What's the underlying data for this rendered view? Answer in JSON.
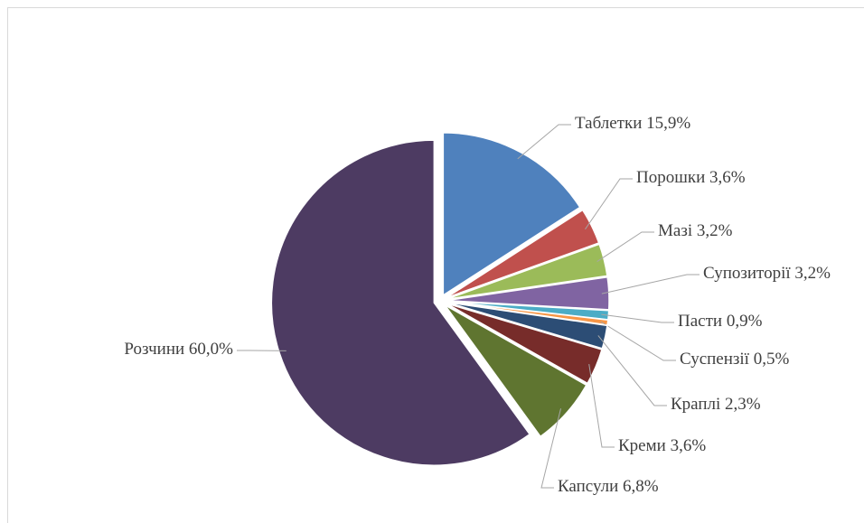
{
  "chart_data": {
    "type": "pie",
    "categories": [
      "Таблетки",
      "Порошки",
      "Мазі",
      "Супозиторії",
      "Пасти",
      "Суспензії",
      "Краплі",
      "Креми",
      "Капсули",
      "Розчини"
    ],
    "values": [
      15.9,
      3.6,
      3.2,
      3.2,
      0.9,
      0.5,
      2.3,
      3.6,
      6.8,
      60.0
    ],
    "value_labels": [
      "15,9%",
      "3,6%",
      "3,2%",
      "3,2%",
      "0,9%",
      "0,5%",
      "2,3%",
      "3,6%",
      "6,8%",
      "60,0%"
    ],
    "colors": [
      "#4f81bd",
      "#c0504d",
      "#9bbb59",
      "#8064a2",
      "#4bacc6",
      "#f79646",
      "#2c4d75",
      "#772c2a",
      "#5f7530",
      "#4d3b62"
    ]
  }
}
